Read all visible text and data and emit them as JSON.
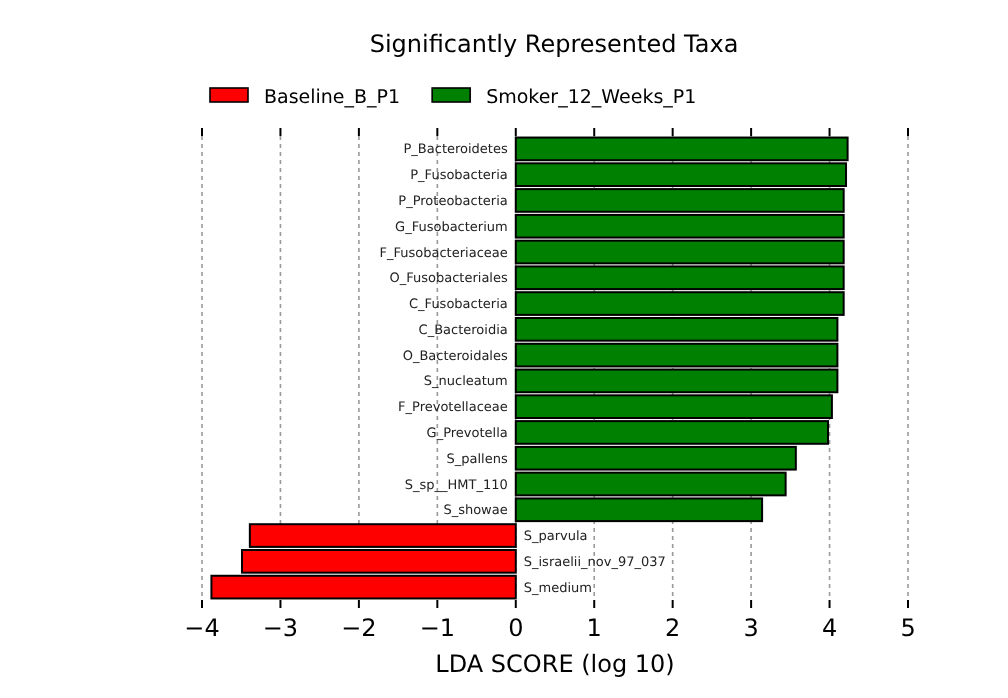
{
  "chart_data": {
    "type": "bar",
    "orientation": "horizontal",
    "title": "Significantly Represented Taxa",
    "xlabel": "LDA SCORE (log 10)",
    "categories": [
      "P_Bacteroidetes",
      "P_Fusobacteria",
      "P_Proteobacteria",
      "G_Fusobacterium",
      "F_Fusobacteriaceae",
      "O_Fusobacteriales",
      "C_Fusobacteria",
      "C_Bacteroidia",
      "O_Bacteroidales",
      "S_nucleatum",
      "F_Prevotellaceae",
      "G_Prevotella",
      "S_pallens",
      "S_sp__HMT_110",
      "S_showae",
      "S_parvula",
      "S_israelii_nov_97_037",
      "S_medium"
    ],
    "series": [
      {
        "name": "Baseline_B_P1",
        "color": "#ff0000",
        "values": [
          null,
          null,
          null,
          null,
          null,
          null,
          null,
          null,
          null,
          null,
          null,
          null,
          null,
          null,
          null,
          -3.39,
          -3.49,
          -3.88
        ]
      },
      {
        "name": "Smoker_12_Weeks_P1",
        "color": "#008000",
        "values": [
          4.23,
          4.21,
          4.18,
          4.18,
          4.18,
          4.18,
          4.18,
          4.1,
          4.1,
          4.1,
          4.03,
          3.98,
          3.57,
          3.44,
          3.14,
          null,
          null,
          null
        ]
      }
    ],
    "xlim": [
      -4,
      5
    ],
    "xticks": [
      -4,
      -3,
      -2,
      -1,
      0,
      1,
      2,
      3,
      4,
      5
    ],
    "grid": "x",
    "legend": "top"
  }
}
